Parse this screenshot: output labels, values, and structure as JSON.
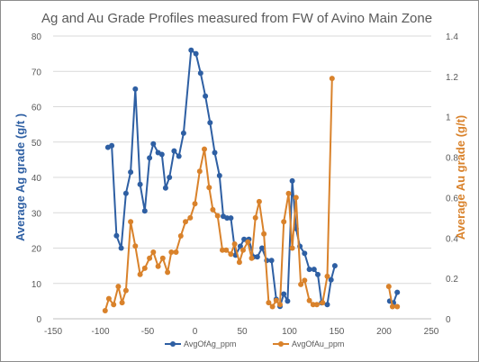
{
  "chart_data": {
    "type": "scatter",
    "title": "Ag and Au Grade Profiles measured from FW of Avino Main Zone",
    "xlabel": "",
    "ylabel": "Average Ag grade (g/t )",
    "y2label": "Average Au grade (g/t)",
    "xlim": [
      -150,
      250
    ],
    "ylim": [
      0,
      80
    ],
    "y2lim": [
      0,
      1.4
    ],
    "x_ticks": [
      "-150",
      "-100",
      "-50",
      "0",
      "50",
      "100",
      "150",
      "200",
      "250"
    ],
    "y_ticks": [
      "0",
      "10",
      "20",
      "30",
      "40",
      "50",
      "60",
      "70",
      "80"
    ],
    "y2_ticks": [
      "0",
      "0.2",
      "0.4",
      "0.6",
      "0.8",
      "1",
      "1.2",
      "1.4"
    ],
    "grid": true,
    "legend_position": "bottom",
    "colors": {
      "ag": "#2e5fa3",
      "au": "#d9822b",
      "grid": "#d9d9d9",
      "axis_text": "#595959"
    },
    "series": [
      {
        "name": "AvgOfAg_ppm",
        "axis": "left",
        "segments": [
          [
            [
              -92,
              48.5
            ],
            [
              -88,
              49
            ],
            [
              -83,
              23.5
            ],
            [
              -78,
              20
            ],
            [
              -73,
              35.5
            ],
            [
              -68,
              41.5
            ],
            [
              -63,
              65
            ],
            [
              -58,
              38
            ],
            [
              -53,
              30.5
            ],
            [
              -48,
              45.5
            ],
            [
              -44,
              49.5
            ],
            [
              -39,
              47
            ],
            [
              -35,
              46.5
            ],
            [
              -31,
              37
            ],
            [
              -27,
              40
            ],
            [
              -22,
              47.5
            ],
            [
              -17,
              46
            ],
            [
              -12,
              52.5
            ],
            [
              -4,
              76
            ],
            [
              1,
              75
            ],
            [
              6,
              69.5
            ],
            [
              11,
              63
            ],
            [
              16,
              55.5
            ],
            [
              21,
              47
            ],
            [
              26,
              40.5
            ],
            [
              30,
              29
            ],
            [
              34,
              28.5
            ],
            [
              38,
              28.5
            ],
            [
              43,
              18
            ],
            [
              48,
              20.5
            ],
            [
              52,
              22.5
            ],
            [
              57,
              22.5
            ],
            [
              62,
              17.5
            ],
            [
              66,
              17.5
            ],
            [
              71,
              20
            ],
            [
              76,
              16.5
            ],
            [
              81,
              16.5
            ],
            [
              86,
              5.5
            ],
            [
              90,
              3.5
            ],
            [
              94,
              7
            ],
            [
              98,
              5
            ],
            [
              103,
              39
            ],
            [
              107,
              25.5
            ],
            [
              111,
              20.5
            ],
            [
              116,
              18.5
            ],
            [
              121,
              14
            ],
            [
              126,
              14
            ],
            [
              130,
              12.5
            ],
            [
              134,
              4.5
            ],
            [
              140,
              4
            ],
            [
              144,
              11
            ],
            [
              148,
              15
            ]
          ],
          [
            [
              206,
              5
            ],
            [
              210,
              4.5
            ],
            [
              214,
              7.5
            ]
          ]
        ]
      },
      {
        "name": "AvgOfAu_ppm",
        "axis": "right",
        "segments": [
          [
            [
              -95,
              0.04
            ],
            [
              -91,
              0.1
            ],
            [
              -86,
              0.07
            ],
            [
              -81,
              0.16
            ],
            [
              -77,
              0.08
            ],
            [
              -73,
              0.14
            ],
            [
              -68,
              0.48
            ],
            [
              -63,
              0.36
            ],
            [
              -58,
              0.22
            ],
            [
              -53,
              0.25
            ],
            [
              -48,
              0.3
            ],
            [
              -44,
              0.33
            ],
            [
              -39,
              0.26
            ],
            [
              -34,
              0.3
            ],
            [
              -29,
              0.23
            ],
            [
              -25,
              0.33
            ],
            [
              -20,
              0.33
            ],
            [
              -15,
              0.41
            ],
            [
              -10,
              0.48
            ],
            [
              -5,
              0.5
            ],
            [
              0,
              0.57
            ],
            [
              5,
              0.73
            ],
            [
              10,
              0.84
            ],
            [
              15,
              0.65
            ],
            [
              19,
              0.54
            ],
            [
              24,
              0.51
            ],
            [
              29,
              0.34
            ],
            [
              33,
              0.34
            ],
            [
              38,
              0.32
            ],
            [
              42,
              0.37
            ],
            [
              47,
              0.28
            ],
            [
              51,
              0.34
            ],
            [
              56,
              0.38
            ],
            [
              60,
              0.3
            ],
            [
              64,
              0.5
            ],
            [
              68,
              0.58
            ],
            [
              73,
              0.42
            ],
            [
              78,
              0.08
            ],
            [
              82,
              0.06
            ],
            [
              86,
              0.09
            ],
            [
              90,
              0.07
            ],
            [
              94,
              0.48
            ],
            [
              99,
              0.62
            ],
            [
              103,
              0.35
            ],
            [
              107,
              0.6
            ],
            [
              112,
              0.17
            ],
            [
              116,
              0.19
            ],
            [
              121,
              0.09
            ],
            [
              125,
              0.07
            ],
            [
              129,
              0.07
            ],
            [
              135,
              0.08
            ],
            [
              140,
              0.21
            ],
            [
              145,
              1.19
            ]
          ],
          [
            [
              205,
              0.16
            ],
            [
              209,
              0.06
            ],
            [
              214,
              0.06
            ]
          ]
        ]
      }
    ]
  }
}
